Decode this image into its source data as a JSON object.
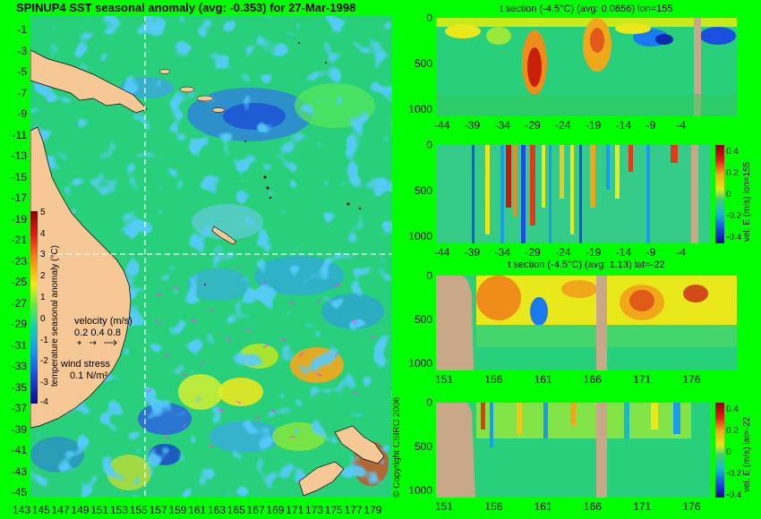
{
  "map": {
    "title": "SPINUP4 SST seasonal anomaly (avg: -0.353) for 27-Mar-1998",
    "lat_ticks": [
      "-1",
      "-3",
      "-5",
      "-7",
      "-9",
      "-11",
      "-13",
      "-15",
      "-17",
      "-19",
      "-21",
      "-23",
      "-25",
      "-27",
      "-29",
      "-31",
      "-33",
      "-35",
      "-37",
      "-39",
      "-41",
      "-43",
      "-45"
    ],
    "lon_ticks": [
      "143",
      "145",
      "147",
      "149",
      "151",
      "153",
      "155",
      "157",
      "159",
      "161",
      "163",
      "165",
      "167",
      "169",
      "171",
      "173",
      "175",
      "177",
      "179"
    ],
    "colorbar_ticks": [
      "5",
      "4",
      "3",
      "2",
      "1",
      "0",
      "-1",
      "-2",
      "-3",
      "-4"
    ],
    "colorbar_label": "temperature seasonal anomaly (°C)",
    "velocity_label": "velocity (m/s)",
    "velocity_scale": "0.2 0.4 0.8",
    "wind_label": "wind stress",
    "wind_scale": "0.1 N/m²",
    "copyright": "© Copyright CSIRO 2006",
    "colors": {
      "land": "#f5c896",
      "ocean_base": "#22d07a",
      "accent_magenta": "#ff33ff"
    }
  },
  "panels": [
    {
      "title": "t section (-4.5°C) (avg: 0.0856) lon=155",
      "y_ticks": [
        "0",
        "500",
        "1000"
      ],
      "x_ticks": [
        "-44",
        "-39",
        "-34",
        "-29",
        "-24",
        "-19",
        "-14",
        "-9",
        "-4"
      ],
      "colorbar_ticks": [],
      "side_label": ""
    },
    {
      "title": "",
      "y_ticks": [
        "0",
        "500",
        "1000"
      ],
      "x_ticks": [
        "-44",
        "-39",
        "-34",
        "-29",
        "-24",
        "-19",
        "-14",
        "-9",
        "-4"
      ],
      "colorbar_ticks": [
        "0.4",
        "0.2",
        "0",
        "-0.2",
        "-0.4"
      ],
      "side_label": "vel. E (m/s) lon=155"
    },
    {
      "title": "t section (-4.5°C) (avg: 1.13) lat=-22",
      "y_ticks": [
        "0",
        "500",
        "1000"
      ],
      "x_ticks": [
        "151",
        "156",
        "161",
        "166",
        "171",
        "176"
      ],
      "colorbar_ticks": [],
      "side_label": ""
    },
    {
      "title": "",
      "y_ticks": [
        "0",
        "500",
        "1000"
      ],
      "x_ticks": [
        "151",
        "156",
        "161",
        "166",
        "171",
        "176"
      ],
      "colorbar_ticks": [
        "0.4",
        "0.2",
        "0",
        "-0.2",
        "-0.4"
      ],
      "side_label": "vel. E (m/s) lat=-22"
    }
  ],
  "chart_data": [
    {
      "type": "heatmap",
      "title": "SPINUP4 SST seasonal anomaly (avg: -0.353) for 27-Mar-1998",
      "xlabel": "",
      "ylabel": "",
      "xlim": [
        143,
        180
      ],
      "ylim": [
        -45,
        0
      ],
      "colorbar_range": [
        -4,
        5
      ],
      "average": -0.353,
      "date": "27-Mar-1998"
    },
    {
      "type": "heatmap",
      "title": "t section (-4.5°C) (avg: 0.0856) lon=155",
      "xlim": [
        -45,
        -1
      ],
      "ylim": [
        1050,
        0
      ],
      "average": 0.0856
    },
    {
      "type": "heatmap",
      "title": "",
      "xlim": [
        -45,
        -1
      ],
      "ylim": [
        1050,
        0
      ],
      "colorbar_range": [
        -0.4,
        0.4
      ],
      "label": "vel. E (m/s) lon=155"
    },
    {
      "type": "heatmap",
      "title": "t section (-4.5°C) (avg: 1.13) lat=-22",
      "xlim": [
        150,
        180
      ],
      "ylim": [
        1050,
        0
      ],
      "average": 1.13
    },
    {
      "type": "heatmap",
      "title": "",
      "xlim": [
        150,
        180
      ],
      "ylim": [
        1050,
        0
      ],
      "colorbar_range": [
        -0.4,
        0.4
      ],
      "label": "vel. E (m/s) lat=-22"
    }
  ]
}
